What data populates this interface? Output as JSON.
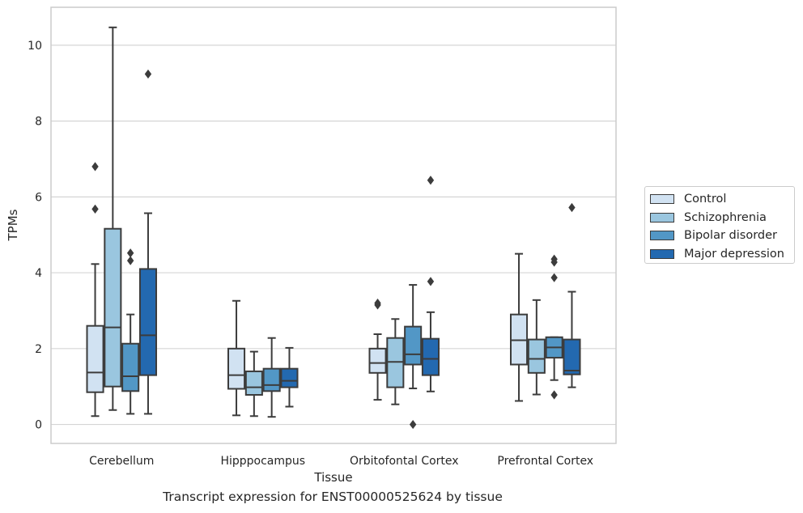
{
  "chart_data": {
    "type": "boxplot",
    "caption": "Transcript expression for ENST00000525624 by tissue",
    "xlabel": "Tissue",
    "ylabel": "TPMs",
    "ylim": [
      -0.5,
      11
    ],
    "yticks": [
      0,
      2,
      4,
      6,
      8,
      10
    ],
    "grid": true,
    "legend_position": "right",
    "categories": [
      "Cerebellum",
      "Hipppocampus",
      "Orbitofontal Cortex",
      "Prefrontal Cortex"
    ],
    "series": [
      {
        "name": "Control",
        "color": "#d1e2f2",
        "boxes": [
          {
            "whislo": 0.22,
            "q1": 0.85,
            "med": 1.37,
            "q3": 2.6,
            "whishi": 4.23,
            "fliers": [
              5.68,
              6.8
            ]
          },
          {
            "whislo": 0.24,
            "q1": 0.94,
            "med": 1.3,
            "q3": 2.0,
            "whishi": 3.26,
            "fliers": []
          },
          {
            "whislo": 0.65,
            "q1": 1.36,
            "med": 1.62,
            "q3": 2.0,
            "whishi": 2.38,
            "fliers": [
              3.15,
              3.2
            ]
          },
          {
            "whislo": 0.62,
            "q1": 1.58,
            "med": 2.22,
            "q3": 2.9,
            "whishi": 4.5,
            "fliers": []
          }
        ]
      },
      {
        "name": "Schizophrenia",
        "color": "#9ac6df",
        "boxes": [
          {
            "whislo": 0.38,
            "q1": 1.0,
            "med": 2.56,
            "q3": 5.16,
            "whishi": 10.47,
            "fliers": []
          },
          {
            "whislo": 0.22,
            "q1": 0.78,
            "med": 0.98,
            "q3": 1.4,
            "whishi": 1.92,
            "fliers": []
          },
          {
            "whislo": 0.53,
            "q1": 0.98,
            "med": 1.65,
            "q3": 2.28,
            "whishi": 2.78,
            "fliers": []
          },
          {
            "whislo": 0.79,
            "q1": 1.36,
            "med": 1.73,
            "q3": 2.24,
            "whishi": 3.28,
            "fliers": []
          }
        ]
      },
      {
        "name": "Bipolar disorder",
        "color": "#5297c6",
        "boxes": [
          {
            "whislo": 0.28,
            "q1": 0.88,
            "med": 1.27,
            "q3": 2.13,
            "whishi": 2.9,
            "fliers": [
              4.32,
              4.52
            ]
          },
          {
            "whislo": 0.2,
            "q1": 0.88,
            "med": 1.04,
            "q3": 1.47,
            "whishi": 2.28,
            "fliers": []
          },
          {
            "whislo": 0.95,
            "q1": 1.58,
            "med": 1.85,
            "q3": 2.58,
            "whishi": 3.68,
            "fliers": [
              0.0
            ]
          },
          {
            "whislo": 1.17,
            "q1": 1.76,
            "med": 2.03,
            "q3": 2.3,
            "whishi": 2.3,
            "fliers": [
              0.78,
              3.87,
              4.28,
              4.36
            ]
          }
        ]
      },
      {
        "name": "Major depression",
        "color": "#2369b0",
        "boxes": [
          {
            "whislo": 0.28,
            "q1": 1.3,
            "med": 2.35,
            "q3": 4.1,
            "whishi": 5.57,
            "fliers": [
              9.24
            ]
          },
          {
            "whislo": 0.47,
            "q1": 0.98,
            "med": 1.15,
            "q3": 1.47,
            "whishi": 2.02,
            "fliers": []
          },
          {
            "whislo": 0.87,
            "q1": 1.3,
            "med": 1.73,
            "q3": 2.26,
            "whishi": 2.96,
            "fliers": [
              3.77,
              6.44
            ]
          },
          {
            "whislo": 0.98,
            "q1": 1.32,
            "med": 1.42,
            "q3": 2.24,
            "whishi": 3.5,
            "fliers": [
              5.72
            ]
          }
        ]
      }
    ]
  }
}
